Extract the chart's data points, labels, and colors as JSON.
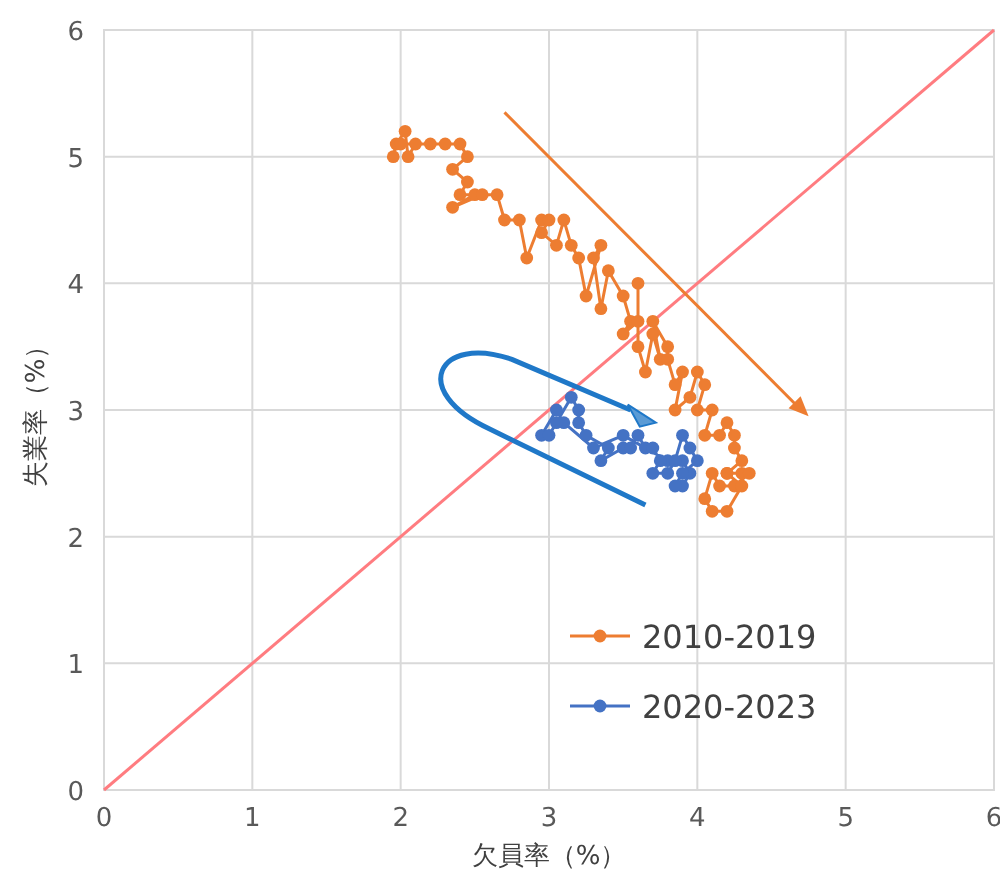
{
  "chart_data": {
    "type": "line",
    "xlabel": "欠員率（%）",
    "ylabel": "失業率（%）",
    "xlim": [
      0,
      6
    ],
    "ylim": [
      0,
      6
    ],
    "xticks": [
      0,
      1,
      2,
      3,
      4,
      5,
      6
    ],
    "yticks": [
      0,
      1,
      2,
      3,
      4,
      5,
      6
    ],
    "grid": true,
    "legend": "bottom right",
    "marker": "circle",
    "series": [
      {
        "name": "2010-2019",
        "color": "#ed7d31",
        "x": [
          1.95,
          1.97,
          2.03,
          2.05,
          2.1,
          2.0,
          2.2,
          2.3,
          2.4,
          2.45,
          2.35,
          2.45,
          2.4,
          2.5,
          2.35,
          2.55,
          2.65,
          2.7,
          2.8,
          2.85,
          2.95,
          3.0,
          2.95,
          3.05,
          3.1,
          3.15,
          3.2,
          3.25,
          3.35,
          3.3,
          3.35,
          3.4,
          3.5,
          3.55,
          3.5,
          3.6,
          3.6,
          3.6,
          3.65,
          3.7,
          3.75,
          3.7,
          3.8,
          3.8,
          3.85,
          3.9,
          3.85,
          3.95,
          4.0,
          4.05,
          4.0,
          4.1,
          4.05,
          4.15,
          4.2,
          4.25,
          4.25,
          4.3,
          4.2,
          4.3,
          4.35,
          4.25,
          4.15,
          4.1,
          4.05,
          4.1,
          4.2,
          4.3,
          4.2
        ],
        "values": [
          5.0,
          5.1,
          5.2,
          5.0,
          5.1,
          5.1,
          5.1,
          5.1,
          5.1,
          5.0,
          4.9,
          4.8,
          4.7,
          4.7,
          4.6,
          4.7,
          4.7,
          4.5,
          4.5,
          4.2,
          4.5,
          4.5,
          4.4,
          4.3,
          4.5,
          4.3,
          4.2,
          3.9,
          4.3,
          4.2,
          3.8,
          4.1,
          3.9,
          3.7,
          3.6,
          3.7,
          4.0,
          3.5,
          3.3,
          3.6,
          3.4,
          3.7,
          3.5,
          3.4,
          3.2,
          3.3,
          3.0,
          3.1,
          3.3,
          3.2,
          3.0,
          3.0,
          2.8,
          2.8,
          2.9,
          2.8,
          2.7,
          2.6,
          2.5,
          2.5,
          2.5,
          2.4,
          2.4,
          2.5,
          2.3,
          2.2,
          2.2,
          2.4,
          2.5
        ]
      },
      {
        "name": "2020-2023",
        "color": "#4472c4",
        "x": [
          3.9,
          3.95,
          3.9,
          3.8,
          3.5,
          3.3,
          3.1,
          3.05,
          2.95,
          3.0,
          3.05,
          3.15,
          3.2,
          3.2,
          3.25,
          3.4,
          3.35,
          3.5,
          3.55,
          3.6,
          3.65,
          3.7,
          3.75,
          3.7,
          3.8,
          3.85,
          3.9,
          3.95,
          4.0,
          3.9,
          3.85
        ],
        "values": [
          2.4,
          2.5,
          2.6,
          2.6,
          2.8,
          2.7,
          2.9,
          3.0,
          2.8,
          2.8,
          2.9,
          3.1,
          3.0,
          2.9,
          2.8,
          2.7,
          2.6,
          2.7,
          2.7,
          2.8,
          2.7,
          2.7,
          2.6,
          2.5,
          2.5,
          2.6,
          2.8,
          2.7,
          2.6,
          2.5,
          2.4
        ]
      },
      {
        "color": "#ff7c80",
        "marker": "none",
        "x": [
          0,
          6
        ],
        "values": [
          0,
          6
        ]
      }
    ]
  }
}
